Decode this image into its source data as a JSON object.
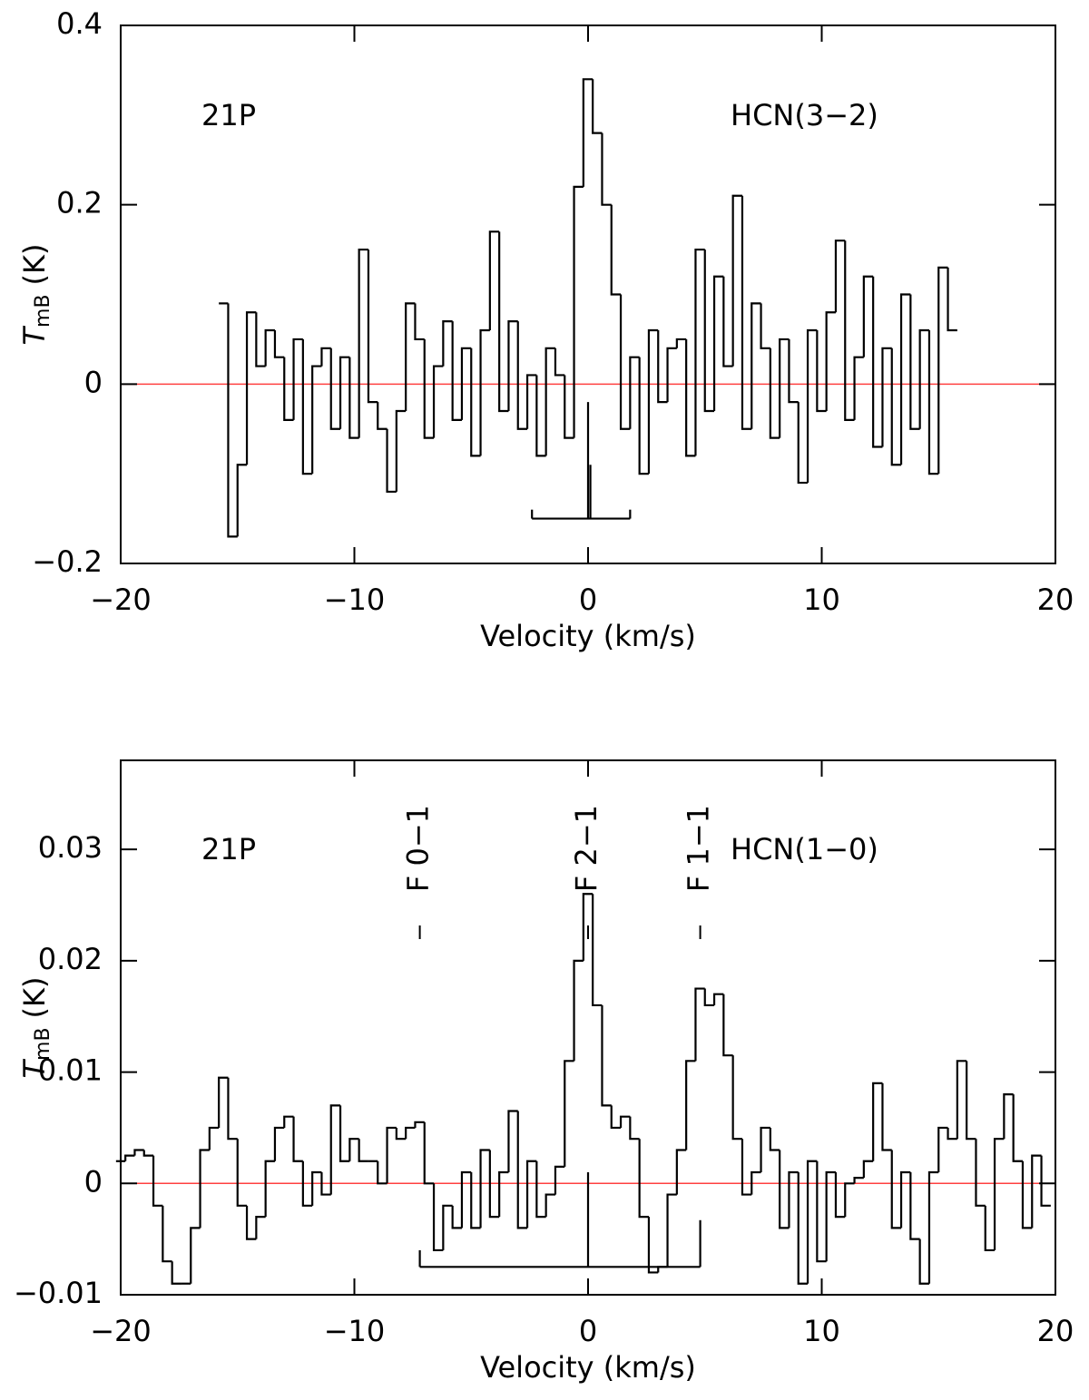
{
  "chart_data": [
    {
      "type": "line",
      "step": true,
      "xlabel": "Velocity (km/s)",
      "ylabel": {
        "main": "T",
        "sub": "mB",
        "unit": "(K)"
      },
      "annotations": [
        "21P",
        "HCN(3−2)"
      ],
      "xlim": [
        -20,
        20
      ],
      "xticks": [
        {
          "value": -20,
          "label": "−20"
        },
        {
          "value": -10,
          "label": "−10"
        },
        0,
        10,
        20
      ],
      "ylim": [
        -0.2,
        0.4
      ],
      "yticks": [
        {
          "value": -0.2,
          "label": "−0.2"
        },
        0,
        0.2,
        0.4
      ],
      "zero_line": {
        "y": 0,
        "color": "#ff4040"
      },
      "hyperfine": {
        "y": -0.15,
        "lines": [
          {
            "x": -2.4,
            "top": -0.14
          },
          {
            "x": 0,
            "top": -0.02
          },
          {
            "x": 0.1,
            "top": -0.09
          },
          {
            "x": 1.8,
            "top": -0.14
          }
        ]
      },
      "series": [
        {
          "color": "#000000",
          "x": [
            -15.6,
            -15.2,
            -14.8,
            -14.4,
            -14.0,
            -13.6,
            -13.2,
            -12.8,
            -12.4,
            -12.0,
            -11.6,
            -11.2,
            -10.8,
            -10.4,
            -10.0,
            -9.6,
            -9.2,
            -8.8,
            -8.4,
            -8.0,
            -7.6,
            -7.2,
            -6.8,
            -6.4,
            -6.0,
            -5.6,
            -5.2,
            -4.8,
            -4.4,
            -4.0,
            -3.6,
            -3.2,
            -2.8,
            -2.4,
            -2.0,
            -1.6,
            -1.2,
            -0.8,
            -0.4,
            0.0,
            0.4,
            0.8,
            1.2,
            1.6,
            2.0,
            2.4,
            2.8,
            3.2,
            3.6,
            4.0,
            4.4,
            4.8,
            5.2,
            5.6,
            6.0,
            6.4,
            6.8,
            7.2,
            7.6,
            8.0,
            8.4,
            8.8,
            9.2,
            9.6,
            10.0,
            10.4,
            10.8,
            11.2,
            11.6,
            12.0,
            12.4,
            12.8,
            13.2,
            13.6,
            14.0,
            14.4,
            14.8,
            15.2,
            15.6
          ],
          "values": [
            0.09,
            -0.17,
            -0.09,
            0.08,
            0.02,
            0.06,
            0.03,
            -0.04,
            0.05,
            -0.1,
            0.02,
            0.04,
            -0.05,
            0.03,
            -0.06,
            0.15,
            -0.02,
            -0.05,
            -0.12,
            -0.03,
            0.09,
            0.05,
            -0.06,
            0.02,
            0.07,
            -0.04,
            0.04,
            -0.08,
            0.06,
            0.17,
            -0.03,
            0.07,
            -0.05,
            0.01,
            -0.08,
            0.04,
            0.01,
            -0.06,
            0.22,
            0.34,
            0.28,
            0.2,
            0.1,
            -0.05,
            0.03,
            -0.1,
            0.06,
            -0.02,
            0.04,
            0.05,
            -0.08,
            0.15,
            -0.03,
            0.12,
            0.02,
            0.21,
            -0.05,
            0.09,
            0.04,
            -0.06,
            0.05,
            -0.02,
            -0.11,
            0.06,
            -0.03,
            0.08,
            0.16,
            -0.04,
            0.03,
            0.12,
            -0.07,
            0.04,
            -0.09,
            0.1,
            -0.05,
            0.06,
            -0.1,
            0.13,
            0.06
          ]
        }
      ]
    },
    {
      "type": "line",
      "step": true,
      "xlabel": "Velocity (km/s)",
      "ylabel": {
        "main": "T",
        "sub": "mB",
        "unit": "(K)"
      },
      "annotations": [
        "21P",
        "HCN(1−0)"
      ],
      "xlim": [
        -20,
        20
      ],
      "xticks": [
        {
          "value": -20,
          "label": "−20"
        },
        {
          "value": -10,
          "label": "−10"
        },
        0,
        10,
        20
      ],
      "ylim": [
        -0.01,
        0.038
      ],
      "yticks": [
        {
          "value": -0.01,
          "label": "−0.01"
        },
        0,
        0.01,
        0.02,
        0.03
      ],
      "zero_line": {
        "y": 0,
        "color": "#ff4040"
      },
      "hyperfine": {
        "y": -0.0075,
        "lines": [
          {
            "x": -7.2,
            "top": -0.006,
            "label": "F 0−1"
          },
          {
            "x": 0,
            "top": 0.001,
            "label": "F 2−1"
          },
          {
            "x": 4.8,
            "top": -0.0033,
            "label": "F 1−1"
          }
        ]
      },
      "series": [
        {
          "color": "#000000",
          "x": [
            -20,
            -19.6,
            -19.2,
            -18.8,
            -18.4,
            -18,
            -17.6,
            -17.2,
            -16.8,
            -16.4,
            -16,
            -15.6,
            -15.2,
            -14.8,
            -14.4,
            -14,
            -13.6,
            -13.2,
            -12.8,
            -12.4,
            -12,
            -11.6,
            -11.2,
            -10.8,
            -10.4,
            -10,
            -9.6,
            -9.2,
            -8.8,
            -8.4,
            -8,
            -7.6,
            -7.2,
            -6.8,
            -6.4,
            -6,
            -5.6,
            -5.2,
            -4.8,
            -4.4,
            -4,
            -3.6,
            -3.2,
            -2.8,
            -2.4,
            -2,
            -1.6,
            -1.2,
            -0.8,
            -0.4,
            0,
            0.4,
            0.8,
            1.2,
            1.6,
            2,
            2.4,
            2.8,
            3.2,
            3.6,
            4,
            4.4,
            4.8,
            5.2,
            5.6,
            6,
            6.4,
            6.8,
            7.2,
            7.6,
            8,
            8.4,
            8.8,
            9.2,
            9.6,
            10,
            10.4,
            10.8,
            11.2,
            11.6,
            12,
            12.4,
            12.8,
            13.2,
            13.6,
            14,
            14.4,
            14.8,
            15.2,
            15.6,
            16,
            16.4,
            16.8,
            17.2,
            17.6,
            18,
            18.4,
            18.8,
            19.2,
            19.6
          ],
          "values": [
            0.002,
            0.0025,
            0.003,
            0.0025,
            -0.002,
            -0.007,
            -0.009,
            -0.009,
            -0.004,
            0.003,
            0.005,
            0.0095,
            0.004,
            -0.002,
            -0.005,
            -0.003,
            0.002,
            0.005,
            0.006,
            0.002,
            -0.002,
            0.001,
            -0.001,
            0.007,
            0.002,
            0.004,
            0.002,
            0.002,
            0,
            0.005,
            0.004,
            0.005,
            0.0055,
            0,
            -0.006,
            -0.002,
            -0.004,
            0.001,
            -0.004,
            0.003,
            -0.003,
            0.001,
            0.0065,
            -0.004,
            0.002,
            -0.003,
            -0.001,
            0.0015,
            0.011,
            0.02,
            0.026,
            0.016,
            0.007,
            0.005,
            0.006,
            0.004,
            -0.003,
            -0.008,
            -0.0075,
            -0.001,
            0.003,
            0.011,
            0.0175,
            0.016,
            0.017,
            0.0115,
            0.004,
            -0.001,
            0.001,
            0.005,
            0.003,
            -0.004,
            0.001,
            -0.009,
            0.002,
            -0.007,
            0.001,
            -0.003,
            0,
            0.0005,
            0.002,
            0.009,
            0.003,
            -0.004,
            0.001,
            -0.005,
            -0.009,
            0.001,
            0.005,
            0.004,
            0.011,
            0.004,
            -0.002,
            -0.006,
            0.004,
            0.008,
            0.002,
            -0.004,
            0.0025,
            -0.002
          ]
        }
      ]
    }
  ]
}
